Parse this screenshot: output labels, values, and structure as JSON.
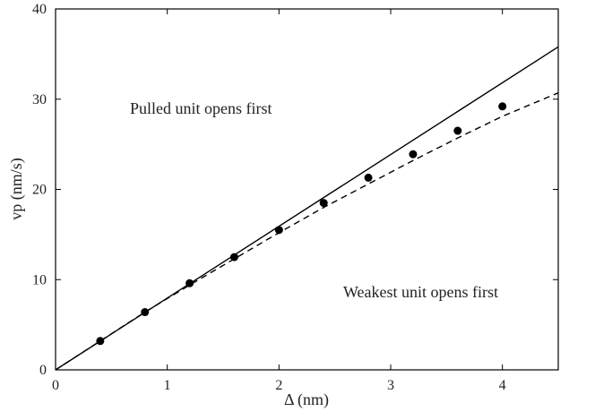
{
  "chart_data": {
    "type": "line",
    "x_label": "Δ (nm)",
    "y_label": "vp (nm/s)",
    "annotations": [
      "Pulled unit opens first",
      "Weakest unit opens first"
    ],
    "xlim": [
      0,
      4.5
    ],
    "ylim": [
      0,
      40
    ],
    "xticks": [
      0,
      1,
      2,
      3,
      4
    ],
    "yticks": [
      0,
      10,
      20,
      30,
      40
    ],
    "grid": false,
    "series": [
      {
        "type": "scatter",
        "color": "#000000",
        "x": [
          0.4,
          0.8,
          1.2,
          1.6,
          2.0,
          2.4,
          2.8,
          3.2,
          3.6,
          4.0
        ],
        "values": [
          3.2,
          6.4,
          9.6,
          12.5,
          15.5,
          18.5,
          21.3,
          23.9,
          26.5,
          29.2
        ]
      },
      {
        "type": "line",
        "dash": false,
        "color": "#000000",
        "x": [
          0,
          4.5
        ],
        "values": [
          0,
          35.8
        ]
      },
      {
        "type": "line",
        "dash": true,
        "color": "#000000",
        "x": [
          0,
          0.4,
          0.8,
          1.2,
          1.6,
          2.0,
          2.4,
          2.8,
          3.2,
          3.6,
          4.0,
          4.5
        ],
        "values": [
          0,
          3.2,
          6.4,
          9.4,
          12.3,
          15.2,
          18.0,
          20.6,
          23.2,
          25.7,
          28.1,
          30.7
        ]
      }
    ]
  }
}
